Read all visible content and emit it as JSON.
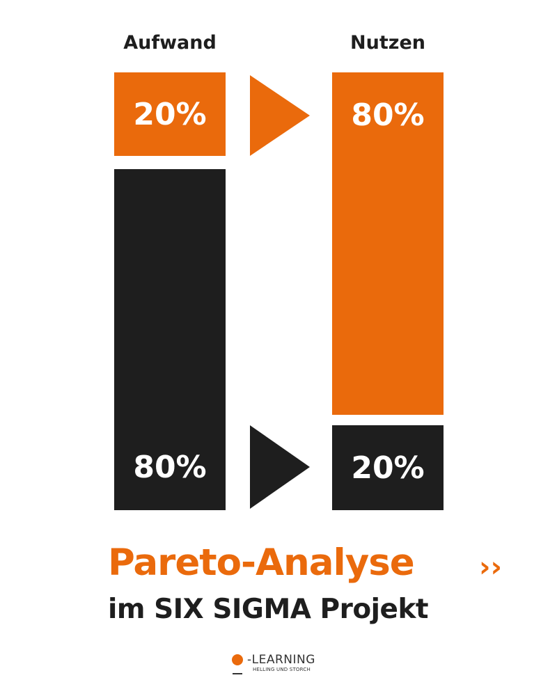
{
  "columns": [
    {
      "label": "Aufwand",
      "top": {
        "value": "20%",
        "color": "#ea6a0c"
      },
      "bottom": {
        "value": "80%",
        "color": "#1e1e1e"
      }
    },
    {
      "label": "Nutzen",
      "top": {
        "value": "80%",
        "color": "#ea6a0c"
      },
      "bottom": {
        "value": "20%",
        "color": "#1e1e1e"
      }
    }
  ],
  "arrows": {
    "top_icon": "triangle-right-orange",
    "bottom_icon": "triangle-right-black"
  },
  "title": "Pareto-Analyse",
  "title_chevron": "››",
  "subtitle": "im SIX SIGMA Projekt",
  "logo": {
    "name": "Q-LEARNING",
    "main": "-LEARNING",
    "tagline": "HELLING UND STORCH"
  },
  "colors": {
    "accent": "#ea6a0c",
    "dark": "#1e1e1e"
  }
}
